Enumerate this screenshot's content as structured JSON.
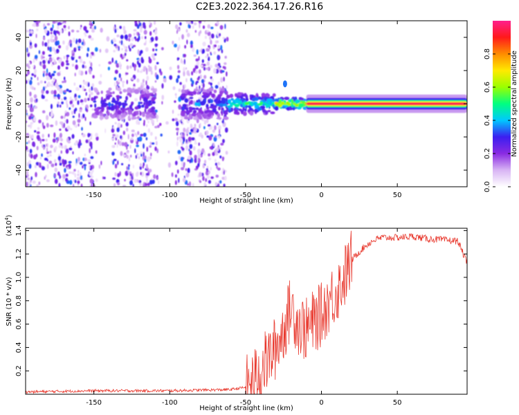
{
  "title": "C2E3.2022.364.17.26.R16",
  "chart_data": [
    {
      "type": "heatmap",
      "xlabel": "Height of straight line (km)",
      "ylabel": "Frequency (Hz)",
      "xlim": [
        -195,
        96
      ],
      "ylim": [
        -50,
        50
      ],
      "xticks": [
        -150,
        -100,
        -50,
        0,
        50
      ],
      "yticks": [
        -40,
        -20,
        0,
        20,
        40
      ],
      "colorbar": {
        "label": "Normalized spectral amplitude",
        "range": [
          0,
          1
        ],
        "ticks": [
          "0.0",
          "0.2",
          "0.4",
          "0.6",
          "0.8"
        ],
        "colormap": [
          "#ffffff",
          "#d8b4f4",
          "#8a2be2",
          "#3c1ef0",
          "#00c8ff",
          "#00ff80",
          "#9aff00",
          "#ffea00",
          "#ff8c00",
          "#ff1a1a",
          "#ff1f8c"
        ]
      },
      "ridge": {
        "frequency_hz": 0,
        "segments": [
          {
            "x_start": -150,
            "x_end": -110,
            "amplitude": 0.35,
            "note": "clustered blobs near 0 Hz"
          },
          {
            "x_start": -92,
            "x_end": -62,
            "amplitude": 0.4
          },
          {
            "x_start": -62,
            "x_end": -30,
            "amplitude": 0.55
          },
          {
            "x_start": -30,
            "x_end": 10,
            "amplitude": 0.8
          },
          {
            "x_start": 10,
            "x_end": 96,
            "amplitude": 0.95
          }
        ],
        "isolated_feature": {
          "x": -24,
          "frequency_hz": 12,
          "amplitude": 0.35
        }
      },
      "noise_region": {
        "x_start": -195,
        "x_end": -62,
        "frequency_range": [
          -50,
          50
        ]
      }
    },
    {
      "type": "line",
      "xlabel": "Height of straight line (km)",
      "ylabel": "SNR (10 * v/v)",
      "y_multiplier": "(x10^4)",
      "xlim": [
        -195,
        96
      ],
      "ylim": [
        0,
        1.42
      ],
      "xticks": [
        -150,
        -100,
        -50,
        0,
        50
      ],
      "yticks": [
        "0.2",
        "0.4",
        "0.6",
        "0.8",
        "1.0",
        "1.2",
        "1.4"
      ],
      "color": "#e8372c",
      "series": [
        {
          "x": [
            -195,
            -150,
            -100,
            -60,
            -50,
            -45,
            -40,
            -35,
            -30,
            -25,
            -20,
            -15,
            -10,
            -5,
            0,
            5,
            10,
            15,
            20,
            25,
            30,
            35,
            40,
            50,
            60,
            70,
            80,
            90,
            96
          ],
          "y": [
            0.02,
            0.03,
            0.03,
            0.04,
            0.06,
            0.1,
            0.22,
            0.3,
            0.4,
            0.55,
            0.75,
            0.6,
            0.55,
            0.62,
            0.68,
            0.8,
            0.88,
            1.0,
            1.15,
            1.22,
            1.28,
            1.32,
            1.34,
            1.34,
            1.35,
            1.33,
            1.32,
            1.31,
            1.12
          ]
        }
      ]
    }
  ]
}
